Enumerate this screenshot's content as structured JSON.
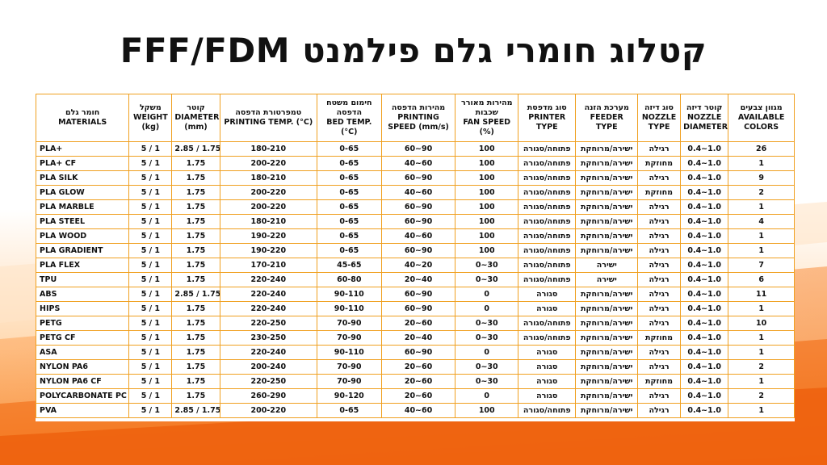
{
  "title": "קטלוג חומרי גלם פילמנט FFF/FDM",
  "headers": [
    {
      "he": "חומר גלם",
      "en": "MATERIALS"
    },
    {
      "he": "משקל",
      "en": "WEIGHT (kg)"
    },
    {
      "he": "קוטר",
      "en": "DIAMETER (mm)"
    },
    {
      "he": "טמפרטורת הדפסה",
      "en": "PRINTING TEMP. (°C)"
    },
    {
      "he": "חימום משטח הדפסה",
      "en": "BED TEMP. (°C)"
    },
    {
      "he": "מהירות הדפסה",
      "en": "PRINTING SPEED (mm/s)"
    },
    {
      "he": "מהירות מאורר שכבות",
      "en": "FAN SPEED (%)"
    },
    {
      "he": "סוג מדפסת",
      "en": "PRINTER TYPE"
    },
    {
      "he": "מערכת הזנה",
      "en": "FEEDER TYPE"
    },
    {
      "he": "סוג דיזה",
      "en": "NOZZLE TYPE"
    },
    {
      "he": "קוטר דיזה",
      "en": "NOZZLE DIAMETER"
    },
    {
      "he": "מגוון צבעים",
      "en": "AVAILABLE COLORS"
    }
  ],
  "rows": [
    [
      "PLA+",
      "5 / 1",
      "2.85 / 1.75",
      "180-210",
      "0-65",
      "60~90",
      "100",
      "פתוחה/סגורה",
      "ישירה/מרוחקת",
      "רגילה",
      "0.4~1.0",
      "26"
    ],
    [
      "PLA+ CF",
      "5 / 1",
      "1.75",
      "200-220",
      "0-65",
      "40~60",
      "100",
      "פתוחה/סגורה",
      "ישירה/מרוחקת",
      "מחוזקת",
      "0.4~1.0",
      "1"
    ],
    [
      "PLA SILK",
      "5 / 1",
      "1.75",
      "180-210",
      "0-65",
      "60~90",
      "100",
      "פתוחה/סגורה",
      "ישירה/מרוחקת",
      "רגילה",
      "0.4~1.0",
      "9"
    ],
    [
      "PLA GLOW",
      "5 / 1",
      "1.75",
      "200-220",
      "0-65",
      "40~60",
      "100",
      "פתוחה/סגורה",
      "ישירה/מרוחקת",
      "מחוזקת",
      "0.4~1.0",
      "2"
    ],
    [
      "PLA MARBLE",
      "5 / 1",
      "1.75",
      "200-220",
      "0-65",
      "60~90",
      "100",
      "פתוחה/סגורה",
      "ישירה/מרוחקת",
      "רגילה",
      "0.4~1.0",
      "1"
    ],
    [
      "PLA STEEL",
      "5 / 1",
      "1.75",
      "180-210",
      "0-65",
      "60~90",
      "100",
      "פתוחה/סגורה",
      "ישירה/מרוחקת",
      "רגילה",
      "0.4~1.0",
      "4"
    ],
    [
      "PLA WOOD",
      "5 / 1",
      "1.75",
      "190-220",
      "0-65",
      "40~60",
      "100",
      "פתוחה/סגורה",
      "ישירה/מרוחקת",
      "רגילה",
      "0.4~1.0",
      "1"
    ],
    [
      "PLA GRADIENT",
      "5 / 1",
      "1.75",
      "190-220",
      "0-65",
      "60~90",
      "100",
      "פתוחה/סגורה",
      "ישירה/מרוחקת",
      "רגילה",
      "0.4~1.0",
      "1"
    ],
    [
      "PLA FLEX",
      "5 / 1",
      "1.75",
      "170-210",
      "45-65",
      "40~20",
      "0~30",
      "פתוחה/סגורה",
      "ישירה",
      "רגילה",
      "0.4~1.0",
      "7"
    ],
    [
      "TPU",
      "5 / 1",
      "1.75",
      "220-240",
      "60-80",
      "20~40",
      "0~30",
      "פתוחה/סגורה",
      "ישירה",
      "רגילה",
      "0.4~1.0",
      "6"
    ],
    [
      "ABS",
      "5 / 1",
      "2.85 / 1.75",
      "220-240",
      "90-110",
      "60~90",
      "0",
      "סגורה",
      "ישירה/מרוחקת",
      "רגילה",
      "0.4~1.0",
      "11"
    ],
    [
      "HIPS",
      "5 / 1",
      "1.75",
      "220-240",
      "90-110",
      "60~90",
      "0",
      "סגורה",
      "ישירה/מרוחקת",
      "רגילה",
      "0.4~1.0",
      "1"
    ],
    [
      "PETG",
      "5 / 1",
      "1.75",
      "220-250",
      "70-90",
      "20~60",
      "0~30",
      "פתוחה/סגורה",
      "ישירה/מרוחקת",
      "רגילה",
      "0.4~1.0",
      "10"
    ],
    [
      "PETG CF",
      "5 / 1",
      "1.75",
      "230-250",
      "70-90",
      "20~40",
      "0~30",
      "פתוחה/סגורה",
      "ישירה/מרוחקת",
      "מחוזקת",
      "0.4~1.0",
      "1"
    ],
    [
      "ASA",
      "5 / 1",
      "1.75",
      "220-240",
      "90-110",
      "60~90",
      "0",
      "סגורה",
      "ישירה/מרוחקת",
      "רגילה",
      "0.4~1.0",
      "1"
    ],
    [
      "NYLON PA6",
      "5 / 1",
      "1.75",
      "200-240",
      "70-90",
      "20~60",
      "0~30",
      "סגורה",
      "ישירה/מרוחקת",
      "רגילה",
      "0.4~1.0",
      "2"
    ],
    [
      "NYLON PA6 CF",
      "5 / 1",
      "1.75",
      "220-250",
      "70-90",
      "20~60",
      "0~30",
      "סגורה",
      "ישירה/מרוחקת",
      "מחוזקת",
      "0.4~1.0",
      "1"
    ],
    [
      "POLYCARBONATE PC",
      "5 / 1",
      "1.75",
      "260-290",
      "90-120",
      "20~60",
      "0",
      "סגורה",
      "ישירה/מרוחקת",
      "רגילה",
      "0.4~1.0",
      "2"
    ],
    [
      "PVA",
      "5 / 1",
      "2.85 / 1.75",
      "200-220",
      "0-65",
      "40~60",
      "100",
      "פתוחה/סגורה",
      "ישירה/מרוחקת",
      "רגילה",
      "0.4~1.0",
      "1"
    ]
  ],
  "colors": {
    "accent": "#f47c20",
    "border": "#f0a020"
  }
}
